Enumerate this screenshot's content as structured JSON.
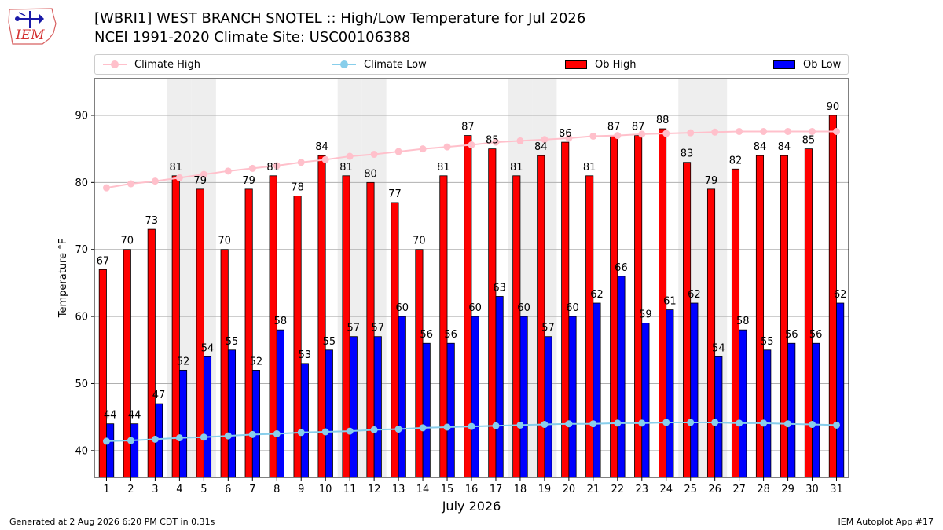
{
  "header": {
    "logo_text": "IEM",
    "title_line1": "[WBRI1] WEST BRANCH SNOTEL :: High/Low Temperature for Jul 2026",
    "title_line2": "NCEI 1991-2020 Climate Site: USC00106388"
  },
  "legend": {
    "climate_high": "Climate High",
    "climate_low": "Climate Low",
    "ob_high": "Ob High",
    "ob_low": "Ob Low"
  },
  "footer": {
    "generated": "Generated at 2 Aug 2026 6:20 PM CDT in 0.31s",
    "app": "IEM Autoplot App #17"
  },
  "colors": {
    "ob_high": "#ff0000",
    "ob_low": "#0000ff",
    "climate_high": "#ffc0cb",
    "climate_low": "#87ceeb",
    "weekend_shade": "#eeeeee",
    "grid": "#b0b0b0"
  },
  "chart_data": {
    "type": "bar",
    "xlabel": "July 2026",
    "ylabel": "Temperature °F",
    "ylim": [
      36,
      95.5
    ],
    "yticks": [
      40,
      50,
      60,
      70,
      80,
      90
    ],
    "grid": "horizontal",
    "legend_position": "top",
    "categories": [
      "1",
      "2",
      "3",
      "4",
      "5",
      "6",
      "7",
      "8",
      "9",
      "10",
      "11",
      "12",
      "13",
      "14",
      "15",
      "16",
      "17",
      "18",
      "19",
      "20",
      "21",
      "22",
      "23",
      "24",
      "25",
      "26",
      "27",
      "28",
      "29",
      "30",
      "31"
    ],
    "shaded_days": [
      4,
      5,
      11,
      12,
      18,
      19,
      25,
      26
    ],
    "series": [
      {
        "name": "Ob High",
        "kind": "bar",
        "values": [
          67,
          70,
          73,
          81,
          79,
          70,
          79,
          81,
          78,
          84,
          81,
          80,
          77,
          70,
          81,
          87,
          85,
          81,
          84,
          86,
          81,
          87,
          87,
          88,
          83,
          79,
          82,
          84,
          84,
          85,
          90
        ]
      },
      {
        "name": "Ob Low",
        "kind": "bar",
        "values": [
          44,
          44,
          47,
          52,
          54,
          55,
          52,
          58,
          53,
          55,
          57,
          57,
          60,
          56,
          56,
          60,
          63,
          60,
          57,
          60,
          62,
          66,
          59,
          61,
          62,
          54,
          58,
          55,
          56,
          56,
          62
        ]
      },
      {
        "name": "Climate High",
        "kind": "line",
        "values": [
          79.2,
          79.8,
          80.2,
          80.7,
          81.2,
          81.7,
          82.1,
          82.5,
          83.0,
          83.4,
          83.9,
          84.2,
          84.6,
          85.0,
          85.3,
          85.6,
          86.0,
          86.2,
          86.4,
          86.6,
          86.9,
          87.0,
          87.2,
          87.3,
          87.4,
          87.5,
          87.6,
          87.6,
          87.6,
          87.6,
          87.6
        ]
      },
      {
        "name": "Climate Low",
        "kind": "line",
        "values": [
          41.4,
          41.5,
          41.7,
          41.9,
          42.0,
          42.2,
          42.4,
          42.5,
          42.7,
          42.8,
          42.9,
          43.1,
          43.2,
          43.4,
          43.5,
          43.6,
          43.7,
          43.8,
          43.9,
          44.0,
          44.0,
          44.1,
          44.1,
          44.2,
          44.2,
          44.2,
          44.1,
          44.1,
          44.0,
          43.9,
          43.8
        ]
      }
    ]
  }
}
